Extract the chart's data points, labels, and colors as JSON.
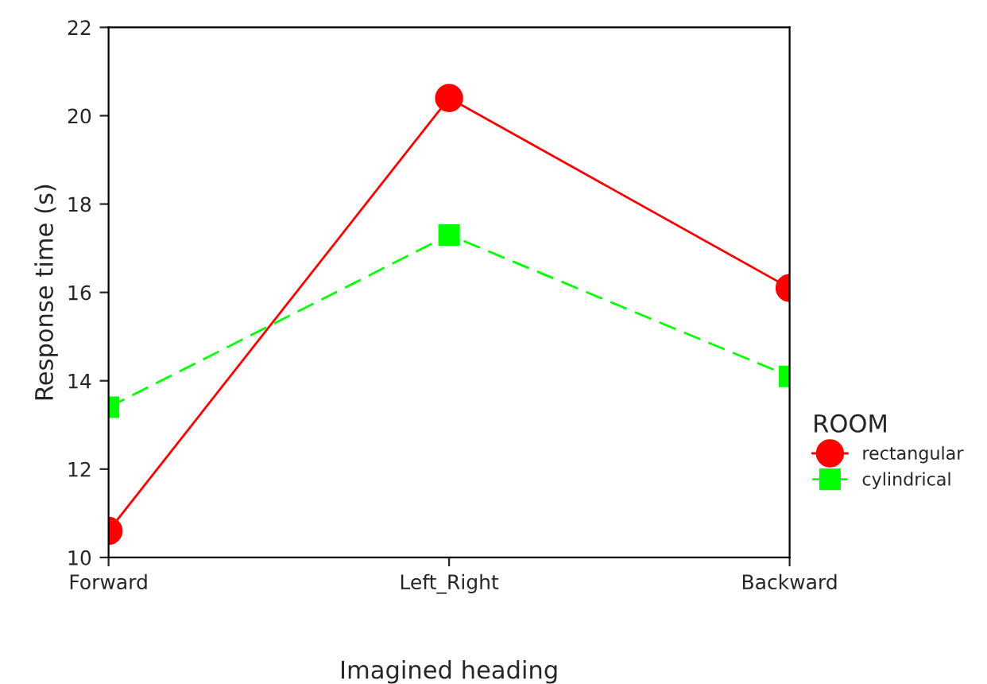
{
  "chart_data": {
    "type": "line",
    "xlabel": "Imagined heading",
    "ylabel": "Response time (s)",
    "legend_title": "ROOM",
    "categories": [
      "Forward",
      "Left_Right",
      "Backward"
    ],
    "series": [
      {
        "name": "rectangular",
        "color": "#ff0000",
        "values": [
          10.6,
          20.4,
          16.1
        ],
        "marker": "circle",
        "line_style": "solid"
      },
      {
        "name": "cylindrical",
        "color": "#00ff00",
        "values": [
          13.4,
          17.3,
          14.1
        ],
        "marker": "square",
        "line_style": "dashed"
      }
    ],
    "ylim": [
      10,
      22
    ],
    "yticks": [
      10,
      12,
      14,
      16,
      18,
      20,
      22
    ],
    "grid": false,
    "legend": "right"
  }
}
